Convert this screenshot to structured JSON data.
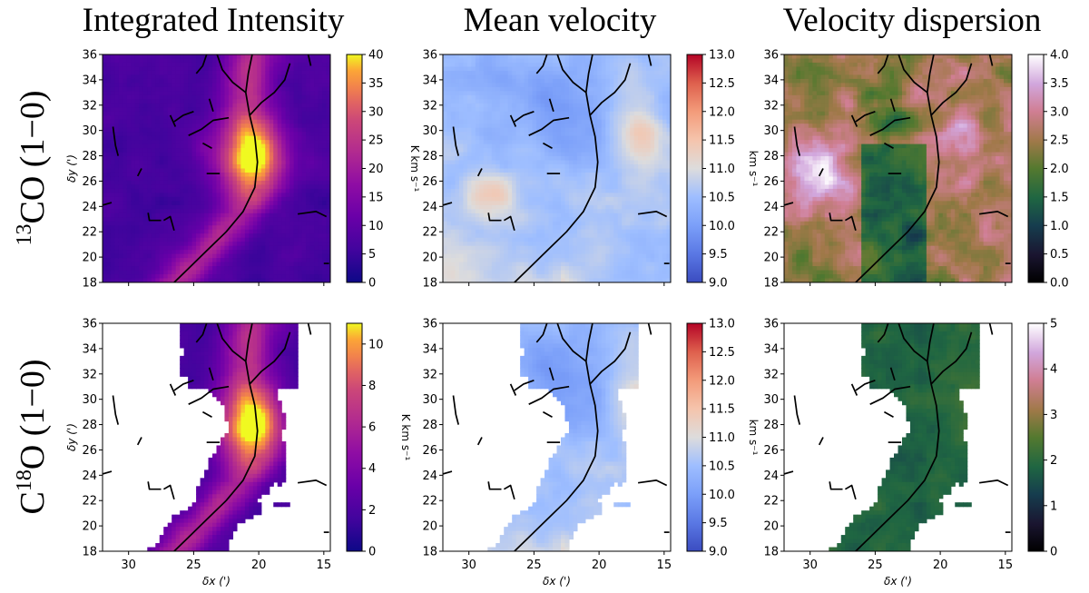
{
  "figure": {
    "column_titles": [
      "Integrated Intensity",
      "Mean velocity",
      "Velocity dispersion"
    ],
    "row_labels": [
      {
        "prefix": "",
        "sup": "13",
        "main": "CO (1−0)"
      },
      {
        "prefix": "C",
        "sup": "18",
        "main": "O (1−0)"
      }
    ],
    "xlabel": "δx (')",
    "ylabel": "δy (')"
  },
  "chart_data": [
    {
      "type": "heatmap",
      "row": 0,
      "col": 0,
      "xlim": [
        32,
        14.5
      ],
      "ylim": [
        18,
        36
      ],
      "xticks": [
        30,
        25,
        20,
        15
      ],
      "yticks": [
        18,
        20,
        22,
        24,
        26,
        28,
        30,
        32,
        34,
        36
      ],
      "show_xticklabels": false,
      "show_yaxis_label": true,
      "colormap": "plasma",
      "colorbar": {
        "label": "K km s⁻¹",
        "range": [
          0,
          40
        ],
        "ticks": [
          0,
          5,
          10,
          15,
          20,
          25,
          30,
          35,
          40
        ]
      },
      "masked": false,
      "field": "intensity"
    },
    {
      "type": "heatmap",
      "row": 0,
      "col": 1,
      "xlim": [
        32,
        14.5
      ],
      "ylim": [
        18,
        36
      ],
      "xticks": [
        30,
        25,
        20,
        15
      ],
      "yticks": [
        18,
        20,
        22,
        24,
        26,
        28,
        30,
        32,
        34,
        36
      ],
      "show_xticklabels": false,
      "show_yaxis_label": false,
      "colormap": "coolwarm",
      "colorbar": {
        "label": "km s⁻¹",
        "range": [
          9.0,
          13.0
        ],
        "ticks": [
          "9.0",
          "9.5",
          "10.0",
          "10.5",
          "11.0",
          "11.5",
          "12.0",
          "12.5",
          "13.0"
        ]
      },
      "masked": false,
      "field": "velocity"
    },
    {
      "type": "heatmap",
      "row": 0,
      "col": 2,
      "xlim": [
        32,
        14.5
      ],
      "ylim": [
        18,
        36
      ],
      "xticks": [
        30,
        25,
        20,
        15
      ],
      "yticks": [
        18,
        20,
        22,
        24,
        26,
        28,
        30,
        32,
        34,
        36
      ],
      "show_xticklabels": false,
      "show_yaxis_label": false,
      "colormap": "cubehelix",
      "colorbar": {
        "label": "km s⁻¹",
        "range": [
          0.0,
          4.0
        ],
        "ticks": [
          "0.0",
          "0.5",
          "1.0",
          "1.5",
          "2.0",
          "2.5",
          "3.0",
          "3.5",
          "4.0"
        ]
      },
      "masked": false,
      "field": "dispersion_co"
    },
    {
      "type": "heatmap",
      "row": 1,
      "col": 0,
      "xlim": [
        32,
        14.5
      ],
      "ylim": [
        18,
        36
      ],
      "xticks": [
        30,
        25,
        20,
        15
      ],
      "yticks": [
        18,
        20,
        22,
        24,
        26,
        28,
        30,
        32,
        34,
        36
      ],
      "show_xticklabels": true,
      "show_yaxis_label": true,
      "colormap": "plasma",
      "colorbar": {
        "label": "K km s⁻¹",
        "range": [
          0,
          11
        ],
        "ticks": [
          0,
          2,
          4,
          6,
          8,
          10
        ]
      },
      "masked": true,
      "field": "intensity"
    },
    {
      "type": "heatmap",
      "row": 1,
      "col": 1,
      "xlim": [
        32,
        14.5
      ],
      "ylim": [
        18,
        36
      ],
      "xticks": [
        30,
        25,
        20,
        15
      ],
      "yticks": [
        18,
        20,
        22,
        24,
        26,
        28,
        30,
        32,
        34,
        36
      ],
      "show_xticklabels": true,
      "show_yaxis_label": false,
      "colormap": "coolwarm",
      "colorbar": {
        "label": "km s⁻¹",
        "range": [
          9.0,
          13.0
        ],
        "ticks": [
          "9.0",
          "9.5",
          "10.0",
          "10.5",
          "11.0",
          "11.5",
          "12.0",
          "12.5",
          "13.0"
        ]
      },
      "masked": true,
      "field": "velocity"
    },
    {
      "type": "heatmap",
      "row": 1,
      "col": 2,
      "xlim": [
        32,
        14.5
      ],
      "ylim": [
        18,
        36
      ],
      "xticks": [
        30,
        25,
        20,
        15
      ],
      "yticks": [
        18,
        20,
        22,
        24,
        26,
        28,
        30,
        32,
        34,
        36
      ],
      "show_xticklabels": true,
      "show_yaxis_label": false,
      "colormap": "cubehelix",
      "colorbar": {
        "label": "km s⁻¹",
        "range": [
          0,
          5
        ],
        "ticks": [
          0,
          1,
          2,
          3,
          4,
          5
        ]
      },
      "masked": true,
      "field": "dispersion_c18o"
    }
  ],
  "filaments": [
    [
      [
        26.5,
        18.0
      ],
      [
        25.5,
        19.0
      ],
      [
        24.0,
        20.5
      ],
      [
        22.5,
        22.0
      ],
      [
        21.2,
        23.6
      ],
      [
        20.3,
        25.5
      ],
      [
        20.1,
        27.5
      ],
      [
        20.3,
        29.5
      ],
      [
        20.7,
        31.2
      ],
      [
        21.0,
        33.0
      ],
      [
        20.8,
        34.5
      ],
      [
        20.5,
        36.0
      ]
    ],
    [
      [
        20.7,
        31.2
      ],
      [
        19.8,
        32.2
      ],
      [
        18.8,
        33.0
      ],
      [
        18.0,
        34.0
      ],
      [
        17.6,
        35.3
      ]
    ],
    [
      [
        21.0,
        33.0
      ],
      [
        22.0,
        33.8
      ],
      [
        22.8,
        34.8
      ],
      [
        23.2,
        36.0
      ]
    ],
    [
      [
        24.0,
        36.0
      ],
      [
        24.3,
        35.1
      ],
      [
        24.8,
        34.5
      ]
    ],
    [
      [
        16.2,
        36.0
      ],
      [
        16.0,
        35.1
      ]
    ],
    [
      [
        22.3,
        31.0
      ],
      [
        23.5,
        30.8
      ],
      [
        24.4,
        30.1
      ],
      [
        25.4,
        29.6
      ]
    ],
    [
      [
        23.8,
        32.5
      ],
      [
        23.5,
        31.5
      ]
    ],
    [
      [
        25.0,
        31.5
      ],
      [
        25.8,
        31.2
      ],
      [
        26.5,
        30.7
      ]
    ],
    [
      [
        26.8,
        31.2
      ],
      [
        26.4,
        30.3
      ]
    ],
    [
      [
        31.2,
        30.3
      ],
      [
        31.0,
        28.8
      ],
      [
        30.8,
        28.0
      ]
    ],
    [
      [
        29.0,
        27.0
      ],
      [
        29.3,
        26.4
      ]
    ],
    [
      [
        24.3,
        29.0
      ],
      [
        23.6,
        28.6
      ]
    ],
    [
      [
        24.0,
        26.6
      ],
      [
        23.0,
        26.6
      ]
    ],
    [
      [
        32.0,
        24.1
      ],
      [
        31.3,
        24.3
      ]
    ],
    [
      [
        28.5,
        23.5
      ],
      [
        28.4,
        22.9
      ],
      [
        27.5,
        22.9
      ]
    ],
    [
      [
        27.3,
        22.9
      ],
      [
        26.8,
        23.2
      ],
      [
        26.5,
        22.1
      ]
    ],
    [
      [
        17.0,
        23.4
      ],
      [
        15.6,
        23.6
      ],
      [
        14.8,
        23.2
      ]
    ],
    [
      [
        15.0,
        19.5
      ],
      [
        14.6,
        19.5
      ]
    ]
  ]
}
